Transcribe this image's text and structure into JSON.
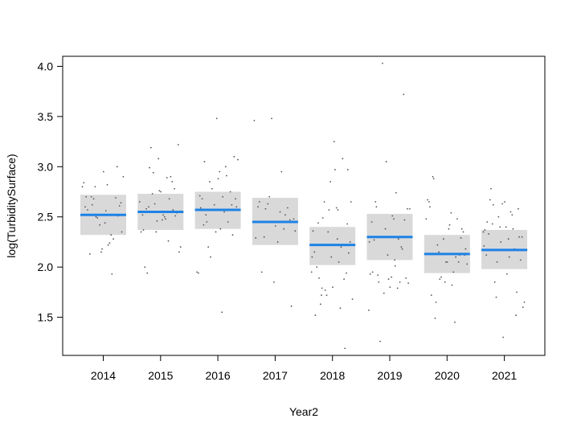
{
  "chart_data": {
    "type": "scatter",
    "xlabel": "Year2",
    "ylabel": "log(TurbiditySurface)",
    "ylim": [
      1.12,
      4.1
    ],
    "yticks": [
      1.5,
      2.0,
      2.5,
      3.0,
      3.5,
      4.0
    ],
    "ytick_labels": [
      "1.5",
      "2.0",
      "2.5",
      "3.0",
      "3.5",
      "4.0"
    ],
    "categories": [
      "2014",
      "2015",
      "2016",
      "2017",
      "2018",
      "2019",
      "2020",
      "2021"
    ],
    "fit": [
      2.52,
      2.55,
      2.57,
      2.45,
      2.22,
      2.3,
      2.13,
      2.17
    ],
    "ci_lower": [
      2.32,
      2.37,
      2.38,
      2.22,
      2.02,
      2.07,
      1.94,
      1.98
    ],
    "ci_upper": [
      2.72,
      2.73,
      2.75,
      2.69,
      2.4,
      2.53,
      2.32,
      2.37
    ],
    "points": [
      [
        2.8,
        2.22,
        2.62,
        2.51,
        2.18,
        2.7,
        1.93,
        2.5,
        2.35,
        2.56,
        2.13,
        2.69,
        2.42,
        2.84,
        2.24,
        2.68,
        2.61,
        2.95,
        2.57,
        2.28,
        2.49,
        2.9,
        2.82,
        2.7,
        3.0,
        2.15,
        2.6,
        2.32,
        2.8,
        2.64,
        2.44
      ],
      [
        2.65,
        2.48,
        2.99,
        2.51,
        2.76,
        2.37,
        2.68,
        2.94,
        2.15,
        2.52,
        1.94,
        2.57,
        2.46,
        2.35,
        2.89,
        3.19,
        2.54,
        2.75,
        2.0,
        2.9,
        2.63,
        2.2,
        2.5,
        2.6,
        2.78,
        3.08,
        2.52,
        2.26,
        2.73,
        3.22,
        2.47,
        2.58,
        2.85,
        2.35,
        2.55
      ],
      [
        1.95,
        2.7,
        2.45,
        2.32,
        3.48,
        2.59,
        2.91,
        2.1,
        2.6,
        2.38,
        3.05,
        2.75,
        2.62,
        1.94,
        2.55,
        2.2,
        3.1,
        2.88,
        2.68,
        2.45,
        2.78,
        3.07,
        1.55,
        2.52,
        2.62,
        2.35,
        2.71,
        3.0,
        2.85,
        2.68,
        2.95,
        2.42
      ],
      [
        3.46,
        2.55,
        2.3,
        2.47,
        1.85,
        2.6,
        2.38,
        2.63,
        2.48,
        2.25,
        1.95,
        2.59,
        3.48,
        2.29,
        2.95,
        2.58,
        1.61,
        2.41,
        2.65,
        2.52,
        2.7,
        2.36
      ],
      [
        1.95,
        2.28,
        1.72,
        2.43,
        2.1,
        1.52,
        2.2,
        1.77,
        2.65,
        2.97,
        1.89,
        1.19,
        2.57,
        2.36,
        2.05,
        2.49,
        2.14,
        1.8,
        2.0,
        3.08,
        1.72,
        1.68,
        2.59,
        1.63,
        1.94,
        2.85,
        2.15,
        1.59,
        2.65,
        2.25,
        3.25,
        2.44,
        1.88,
        2.35,
        2.1,
        2.57,
        1.79,
        2.97
      ],
      [
        1.57,
        2.07,
        1.85,
        2.47,
        1.88,
        1.95,
        2.28,
        4.03,
        1.84,
        2.51,
        2.6,
        2.18,
        3.05,
        1.93,
        2.74,
        1.26,
        1.89,
        1.8,
        2.27,
        1.85,
        1.74,
        2.58,
        2.48,
        1.92,
        3.72,
        2.12,
        2.45,
        1.79,
        2.3,
        2.58,
        1.9,
        2.65,
        2.2,
        2.38,
        2.25,
        2.01
      ],
      [
        2.48,
        1.82,
        1.65,
        2.38,
        2.05,
        2.6,
        2.1,
        1.88,
        2.18,
        2.42,
        2.88,
        2.12,
        2.28,
        2.67,
        1.95,
        2.22,
        2.35,
        2.05,
        1.72,
        2.48,
        1.9,
        2.03,
        2.54,
        1.49,
        2.29,
        1.85,
        2.65,
        1.45,
        2.15,
        2.12,
        2.38,
        2.9,
        2.05
      ],
      [
        2.35,
        2.1,
        2.62,
        2.3,
        1.3,
        2.45,
        2.38,
        2.05,
        1.6,
        1.93,
        2.78,
        1.75,
        2.25,
        2.37,
        2.55,
        1.85,
        2.07,
        2.65,
        2.33,
        2.18,
        2.5,
        1.65,
        2.28,
        2.43,
        2.58,
        2.63,
        2.12,
        2.52,
        1.7,
        2.3,
        2.4,
        2.67,
        1.52,
        2.4,
        2.21
      ]
    ],
    "colors": {
      "fit_line": "#1e82e6",
      "band": "#d9d9d9",
      "points": "#555555",
      "frame": "#000000"
    },
    "grid": false,
    "legend": "none"
  }
}
